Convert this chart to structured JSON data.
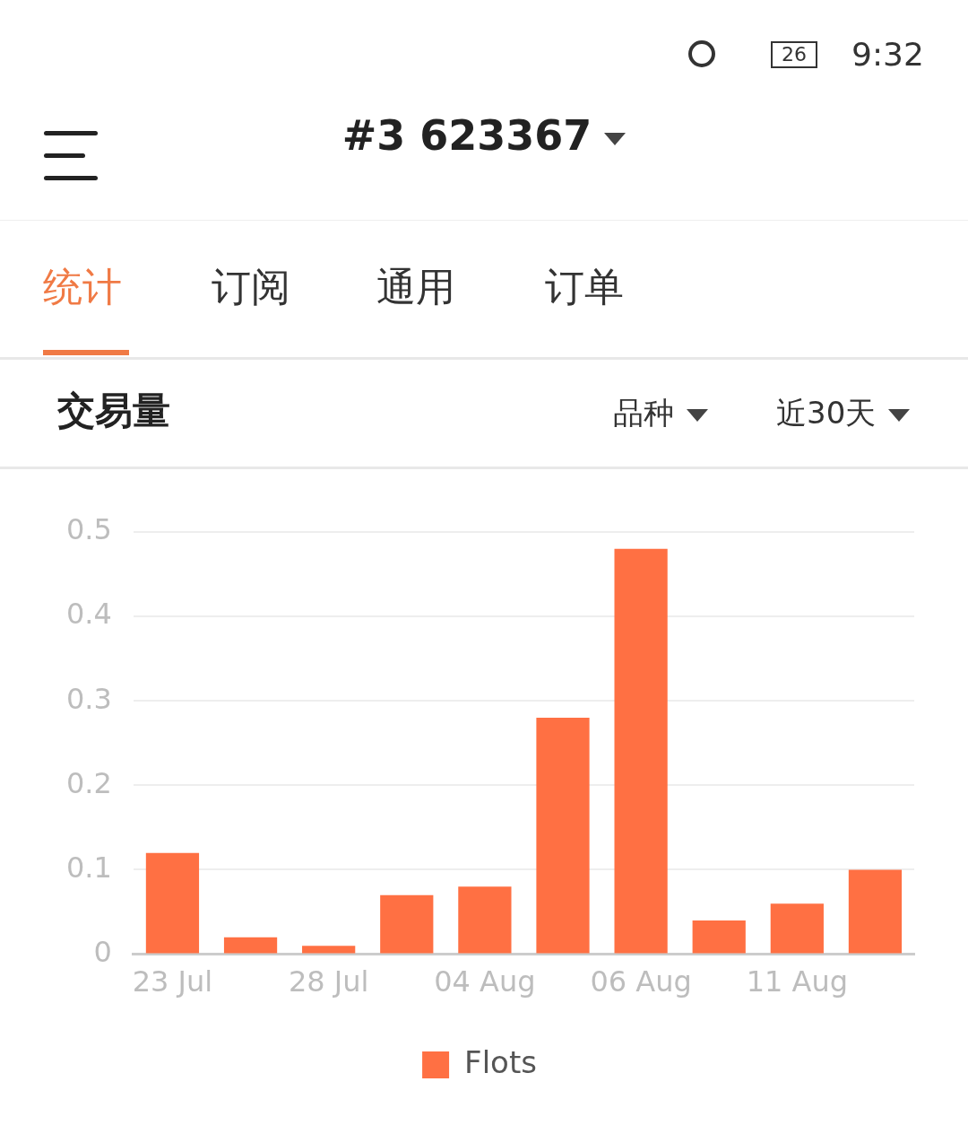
{
  "chart_data": {
    "type": "bar",
    "title": "交易量",
    "categories": [
      "23 Jul",
      null,
      "28 Jul",
      null,
      "04 Aug",
      null,
      "06 Aug",
      null,
      "11 Aug",
      null
    ],
    "series": [
      {
        "name": "Flots",
        "color": "#ff7043",
        "values": [
          0.12,
          0.02,
          0.01,
          0.07,
          0.08,
          0.28,
          0.48,
          0.04,
          0.06,
          0.1
        ]
      }
    ],
    "ylim": [
      0,
      0.5
    ],
    "yticks": [
      0,
      0.1,
      0.2,
      0.3,
      0.4,
      0.5
    ],
    "grid": "y",
    "legend": "bottom",
    "annotations": [
      "#3 623367",
      "统计",
      "订阅",
      "通用",
      "订单",
      "品种",
      "近30天",
      "9:32",
      "26"
    ]
  }
}
